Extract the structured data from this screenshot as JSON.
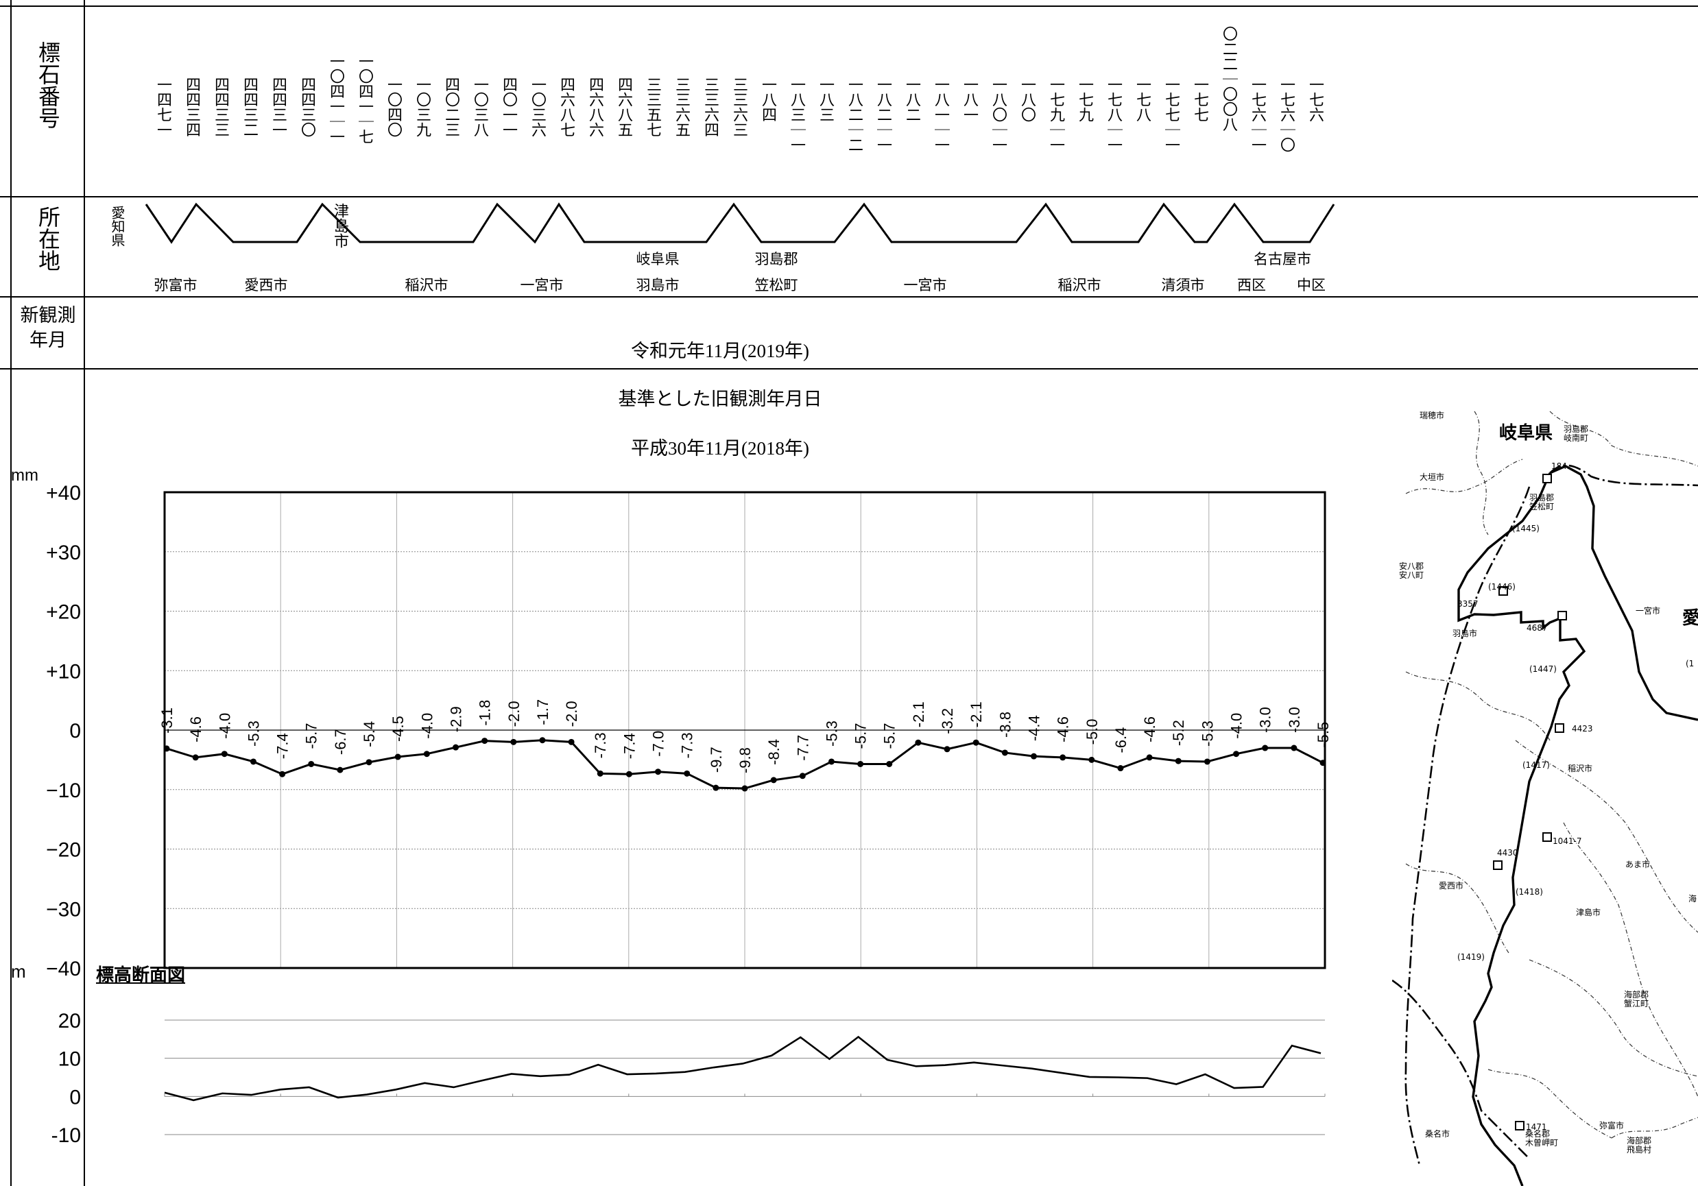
{
  "headers": {
    "benchmark": "標石番号",
    "location": "所在地",
    "observed_line1": "新観測",
    "observed_line2": "年月"
  },
  "benchmarks": [
    "一四七一",
    "四四三四",
    "四四三三",
    "四四三二",
    "四四三一",
    "四四三〇",
    "一〇四一|一",
    "一〇四一|七",
    "一〇四〇",
    "一〇三九",
    "四〇二三",
    "一〇三八",
    "四〇一一",
    "一〇三六",
    "四六八七",
    "四六八六",
    "四六八五",
    "三三五七",
    "三三六五",
    "三三六四",
    "三三六三",
    "一八四",
    "一八三|一",
    "一八三",
    "一八二|二",
    "一八二|一",
    "一八二",
    "一八一|一",
    "一八一",
    "一八〇|一",
    "一八〇",
    "一七九|一",
    "一七九",
    "一七八|一",
    "一七八",
    "一七七|一",
    "一七七",
    "〇二二|〇〇八",
    "一七六|一",
    "一七六|〇",
    "一七六"
  ],
  "prefectures": {
    "aichi": "愛知県",
    "tsushima": "津島市",
    "gifu": "岐阜県",
    "hashima_gun": "羽島郡",
    "nagoya": "名古屋市"
  },
  "municipalities": [
    {
      "name": "弥富市"
    },
    {
      "name": "愛西市"
    },
    {
      "name": "稲沢市"
    },
    {
      "name": "一宮市"
    },
    {
      "name": "羽島市"
    },
    {
      "name": "笠松町"
    },
    {
      "name": "一宮市"
    },
    {
      "name": "稲沢市"
    },
    {
      "name": "清須市"
    },
    {
      "name": "西区"
    },
    {
      "name": "中区"
    }
  ],
  "new_observation": "令和元年11月(2019年)",
  "reference_title": "基準とした旧観測年月日",
  "reference_date": "平成30年11月(2018年)",
  "units": {
    "mm": "mm",
    "m": "m"
  },
  "elevation_title": "標高断面図",
  "chart_data": [
    {
      "type": "line",
      "title": "",
      "ylabel": "mm",
      "ylim": [
        -40,
        40
      ],
      "yticks": [
        "+40",
        "+30",
        "+20",
        "+10",
        "0",
        "−10",
        "−20",
        "−30",
        "−40"
      ],
      "grid": true,
      "series": [
        {
          "values": [
            -3.1,
            -4.6,
            -4.0,
            -5.3,
            -7.4,
            -5.7,
            -6.7,
            -5.4,
            -4.5,
            -4.0,
            -2.9,
            -1.8,
            -2.0,
            -1.7,
            -2.0,
            -7.3,
            -7.4,
            -7.0,
            -7.3,
            -9.7,
            -9.8,
            -8.4,
            -7.7,
            -5.3,
            -5.7,
            -5.7,
            -2.1,
            -3.2,
            -2.1,
            -3.8,
            -4.4,
            -4.6,
            -5.0,
            -6.4,
            -4.6,
            -5.2,
            -5.3,
            -4.0,
            -3.0,
            -3.0,
            -5.5
          ]
        }
      ],
      "data_labels": [
        "-3.1",
        "-4.6",
        "-4.0",
        "-5.3",
        "-7.4",
        "-5.7",
        "-6.7",
        "-5.4",
        "-4.5",
        "-4.0",
        "-2.9",
        "-1.8",
        "-2.0",
        "-1.7",
        "-2.0",
        "-7.3",
        "-7.4",
        "-7.0",
        "-7.3",
        "-9.7",
        "-9.8",
        "-8.4",
        "-7.7",
        "-5.3",
        "-5.7",
        "-5.7",
        "-2.1",
        "-3.2",
        "-2.1",
        "-3.8",
        "-4.4",
        "-4.6",
        "-5.0",
        "-6.4",
        "-4.6",
        "-5.2",
        "-5.3",
        "-4.0",
        "-3.0",
        "-3.0",
        "-5.5"
      ]
    },
    {
      "type": "line",
      "title": "標高断面図",
      "ylabel": "m",
      "ylim": [
        -10,
        20
      ],
      "yticks": [
        "20",
        "10",
        "0",
        "-10"
      ],
      "series": [
        {
          "values": [
            1.0,
            -1.0,
            0.8,
            0.4,
            1.8,
            2.4,
            -0.3,
            0.5,
            1.8,
            3.5,
            2.4,
            4.2,
            5.9,
            5.3,
            5.7,
            8.3,
            5.8,
            6.0,
            6.4,
            7.6,
            8.6,
            10.7,
            15.5,
            9.8,
            15.6,
            9.6,
            7.9,
            8.2,
            8.9,
            8.1,
            7.3,
            6.2,
            5.1,
            5.0,
            4.8,
            3.2,
            5.8,
            2.2,
            2.5,
            13.3,
            11.3
          ]
        }
      ]
    }
  ],
  "map": {
    "labels": [
      "瑞穂市",
      "岐阜県",
      "羽島郡\n岐南町",
      "大垣市",
      "羽島郡\n笠松町",
      "(1445)",
      "安八郡\n安八町",
      "3357",
      "(1446)",
      "4687",
      "羽島市",
      "一宮市",
      "愛",
      "(1447)",
      "4423",
      "(1417)",
      "稲沢市",
      "1041-7",
      "4430",
      "あま市",
      "愛西市",
      "(1418)",
      "津島市",
      "(1419)",
      "海部郡\n蟹江町",
      "1471",
      "弥富市",
      "桑名市",
      "桑名郡\n木曽岬町",
      "海部郡\n飛島村",
      "184",
      "(1",
      "海"
    ]
  }
}
